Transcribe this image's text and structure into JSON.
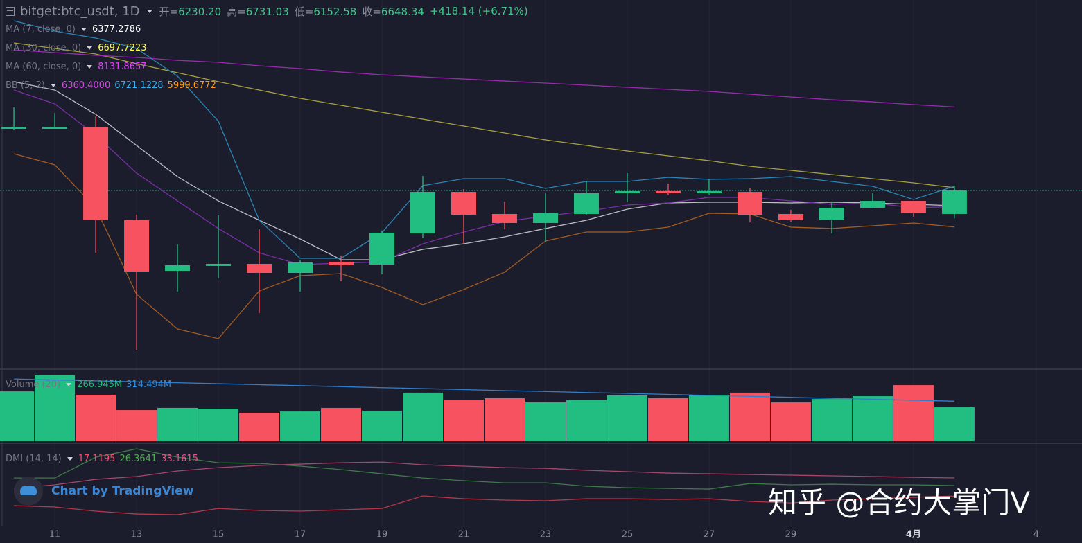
{
  "header": {
    "symbol": "bitget:btc_usdt, 1D",
    "fields": [
      {
        "label": "开=",
        "value": "6230.20"
      },
      {
        "label": "高=",
        "value": "6731.03"
      },
      {
        "label": "低=",
        "value": "6152.58"
      },
      {
        "label": "收=",
        "value": "6648.34"
      }
    ],
    "change": "+418.14 (+6.71%)"
  },
  "price_panel": {
    "ylim": [
      3511,
      10031
    ],
    "last_price": 6648.34,
    "up_color": "#22bd80",
    "down_color": "#f7525f",
    "candles": {
      "x": [
        10,
        11,
        12,
        13,
        14,
        15,
        16,
        17,
        18,
        19,
        20,
        21,
        22,
        23,
        24,
        25,
        26,
        27,
        28,
        29,
        30,
        31,
        32,
        33
      ],
      "open": [
        7743,
        7743,
        7780,
        6119,
        5221,
        5308,
        5344,
        5184,
        5381,
        5332,
        5885,
        6623,
        6230,
        6070,
        6230,
        6599,
        6636,
        6599,
        6623,
        6230,
        6119,
        6340,
        6463,
        6230.2
      ],
      "high": [
        8124,
        8026,
        7977,
        6218,
        5689,
        6205,
        5959,
        5418,
        5492,
        5935,
        6906,
        6673,
        6451,
        6599,
        6820,
        6956,
        6771,
        6845,
        6685,
        6304,
        6439,
        6599,
        6463,
        6731.03
      ],
      "low": [
        7718,
        7743,
        5541,
        3819,
        4852,
        5086,
        4471,
        4852,
        5037,
        5160,
        5799,
        5701,
        5959,
        5738,
        6217,
        6439,
        6562,
        6574,
        6082,
        6094,
        5885,
        6328,
        6181,
        6152.58
      ],
      "close": [
        7780,
        7780,
        6119,
        5209,
        5320,
        5344,
        5184,
        5369,
        5320,
        5898,
        6623,
        6217,
        6070,
        6242,
        6599,
        6636,
        6599,
        6636,
        6217,
        6119,
        6340,
        6463,
        6242,
        6648.34
      ]
    },
    "legend": [
      {
        "name": "MA (7, close, 0)",
        "values": [
          {
            "text": "6377.2786",
            "color": "#ffffff"
          }
        ]
      },
      {
        "name": "MA (30, close, 0)",
        "values": [
          {
            "text": "6697.7223",
            "color": "#ffff3b"
          }
        ]
      },
      {
        "name": "MA (60, close, 0)",
        "values": [
          {
            "text": "8131.8657",
            "color": "#e040fb"
          }
        ]
      },
      {
        "name": "BB (5, 2)",
        "values": [
          {
            "text": "6360.4000",
            "color": "#d04ae0"
          },
          {
            "text": "6721.1228",
            "color": "#33b5f5"
          },
          {
            "text": "5999.6772",
            "color": "#ff9a1f"
          }
        ]
      }
    ],
    "lines": [
      {
        "color": "#bdbdc4",
        "values": [
          8579,
          8432,
          8001,
          7448,
          6894,
          6463,
          6119,
          5787,
          5418,
          5418,
          5603,
          5701,
          5824,
          5972,
          6119,
          6316,
          6427,
          6439,
          6439,
          6427,
          6439,
          6427,
          6402,
          6377.2786
        ]
      },
      {
        "color": "#a8a23c",
        "values": [
          9268,
          9170,
          9071,
          8899,
          8739,
          8579,
          8432,
          8284,
          8161,
          8038,
          7915,
          7792,
          7669,
          7546,
          7448,
          7349,
          7263,
          7177,
          7079,
          7005,
          6931,
          6857,
          6783,
          6697.7223
        ]
      },
      {
        "color": "#9b2ab0",
        "values": [
          9145,
          9096,
          9047,
          9010,
          8960,
          8924,
          8862,
          8813,
          8751,
          8702,
          8665,
          8628,
          8591,
          8555,
          8518,
          8481,
          8444,
          8407,
          8358,
          8309,
          8259,
          8222,
          8173,
          8131.8657
        ]
      },
      {
        "color": "#2a86b8",
        "values": [
          9662,
          9477,
          9354,
          9170,
          8678,
          7878,
          6119,
          5443,
          5443,
          5898,
          6734,
          6857,
          6857,
          6685,
          6808,
          6808,
          6882,
          6845,
          6857,
          6894,
          6808,
          6722,
          6488,
          6721.1228
        ]
      },
      {
        "color": "#7a2fa6",
        "values": [
          8432,
          8186,
          7632,
          6956,
          6463,
          5972,
          5541,
          5332,
          5357,
          5381,
          5701,
          5910,
          6095,
          6193,
          6279,
          6390,
          6427,
          6525,
          6525,
          6463,
          6402,
          6427,
          6340,
          6360.4
        ]
      },
      {
        "color": "#a35c22",
        "values": [
          7300,
          7103,
          6340,
          4803,
          4188,
          4016,
          4864,
          5135,
          5172,
          4926,
          4619,
          4889,
          5197,
          5750,
          5910,
          5910,
          5996,
          6242,
          6230,
          5996,
          5972,
          6021,
          6070,
          5999.6772
        ]
      }
    ]
  },
  "volume_panel": {
    "ylim": [
      0,
      545
    ],
    "legend": {
      "name": "Volume (20)",
      "values": [
        {
          "text": "266.945M",
          "color": "#22bd80"
        },
        {
          "text": "314.494M",
          "color": "#2f8fe0"
        }
      ]
    },
    "values": [
      392,
      518,
      365,
      245,
      262,
      256,
      223,
      234,
      262,
      240,
      382,
      327,
      338,
      305,
      322,
      360,
      338,
      365,
      382,
      305,
      332,
      354,
      441,
      266.945
    ],
    "ma": {
      "color": "#2f7fd0",
      "values": [
        490,
        482,
        475,
        467,
        460,
        452,
        444,
        437,
        429,
        421,
        414,
        406,
        398,
        391,
        383,
        376,
        368,
        360,
        353,
        345,
        337,
        330,
        322,
        314.494
      ]
    }
  },
  "dmi_panel": {
    "ylim": [
      -9.8,
      62
    ],
    "legend": {
      "name": "DMI (14, 14)",
      "values": [
        {
          "text": "17.1195",
          "color": "#f0506e"
        },
        {
          "text": "26.3641",
          "color": "#4caf50"
        },
        {
          "text": "33.1615",
          "color": "#e8548a"
        }
      ]
    },
    "lines": [
      {
        "color": "#b8384a",
        "values": [
          8.6,
          7.4,
          3.7,
          1.2,
          0.6,
          6.1,
          4.3,
          3.7,
          4.9,
          6.1,
          17.2,
          14.7,
          13.5,
          12.9,
          14.7,
          14.7,
          14.1,
          14.7,
          12.3,
          11.0,
          13.5,
          14.7,
          16.0,
          17.1195
        ]
      },
      {
        "color": "#3f7a4a",
        "values": [
          33.1,
          33.1,
          51.5,
          58.9,
          51.5,
          46.6,
          46.0,
          43.6,
          40.5,
          36.8,
          33.1,
          30.7,
          28.8,
          28.8,
          25.8,
          24.5,
          23.9,
          23.3,
          28.2,
          27.0,
          27.6,
          27.0,
          27.0,
          26.3641
        ]
      },
      {
        "color": "#a8466c",
        "values": [
          23.9,
          27.0,
          31.9,
          34.4,
          39.3,
          42.3,
          44.2,
          45.4,
          46.6,
          47.2,
          44.8,
          43.6,
          42.3,
          41.7,
          39.9,
          38.7,
          37.4,
          36.8,
          36.2,
          35.6,
          35.0,
          34.4,
          33.7,
          33.1615
        ]
      }
    ]
  },
  "x_axis": {
    "xlim": [
      9.66,
      36.12
    ],
    "xticks": [
      11,
      13,
      15,
      17,
      19,
      21,
      23,
      25,
      27,
      29,
      {
        "value": 32,
        "label": "4月"
      },
      {
        "value": 35,
        "label": "4"
      }
    ]
  },
  "watermarks": {
    "tradingview": "Chart by TradingView",
    "zhihu": "知乎 @合约大掌门V"
  }
}
